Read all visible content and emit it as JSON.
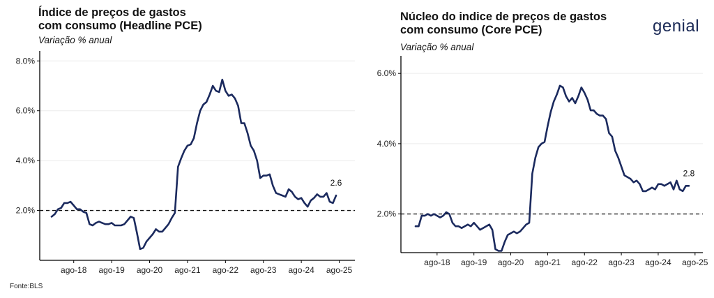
{
  "brand": {
    "logo_text": "genial",
    "accent_color": "#2bb3a9"
  },
  "source": "Fonte:BLS",
  "line_color": "#1b2a5e",
  "chart_data": [
    {
      "type": "line",
      "title_line1": "Índice de preços de gastos",
      "title_line2": "com consumo (Headline PCE)",
      "subtitle": "Variação % anual",
      "xticks": [
        "ago-18",
        "ago-19",
        "ago-20",
        "ago-21",
        "ago-22",
        "ago-23",
        "ago-24",
        "ago-25"
      ],
      "yticks": [
        "2.0%",
        "4.0%",
        "6.0%",
        "8.0%"
      ],
      "ytick_values": [
        2,
        4,
        6,
        8
      ],
      "ylim": [
        0,
        8.4
      ],
      "x_start": "2018-01",
      "reference_line": 2,
      "end_label": "2.6",
      "values": [
        1.75,
        1.85,
        2.05,
        2.1,
        2.3,
        2.3,
        2.35,
        2.2,
        2.05,
        2.05,
        1.95,
        1.9,
        1.45,
        1.4,
        1.5,
        1.55,
        1.5,
        1.45,
        1.45,
        1.5,
        1.4,
        1.4,
        1.4,
        1.45,
        1.6,
        1.75,
        1.7,
        1.1,
        0.45,
        0.5,
        0.75,
        0.9,
        1.05,
        1.25,
        1.15,
        1.15,
        1.3,
        1.45,
        1.7,
        1.9,
        3.75,
        4.1,
        4.4,
        4.6,
        4.65,
        4.9,
        5.5,
        6.0,
        6.25,
        6.35,
        6.65,
        7.0,
        6.8,
        6.75,
        7.25,
        6.8,
        6.6,
        6.65,
        6.5,
        6.2,
        5.5,
        5.5,
        5.1,
        4.6,
        4.4,
        4.0,
        3.3,
        3.4,
        3.4,
        3.45,
        3.0,
        2.7,
        2.65,
        2.6,
        2.55,
        2.85,
        2.75,
        2.55,
        2.45,
        2.5,
        2.3,
        2.15,
        2.4,
        2.5,
        2.65,
        2.55,
        2.55,
        2.7,
        2.35,
        2.3,
        2.6
      ]
    },
    {
      "type": "line",
      "title_line1": "Núcleo do indice de preços de gastos",
      "title_line2": "com consumo (Core PCE)",
      "subtitle": "Variação % anual",
      "xticks": [
        "ago-18",
        "ago-19",
        "ago-20",
        "ago-21",
        "ago-22",
        "ago-23",
        "ago-24",
        "ago-25"
      ],
      "yticks": [
        "2.0%",
        "4.0%",
        "6.0%"
      ],
      "ytick_values": [
        2,
        4,
        6
      ],
      "ylim": [
        0.9,
        6.5
      ],
      "x_start": "2018-01",
      "reference_line": 2,
      "end_label": "2.8",
      "values": [
        1.65,
        1.65,
        1.95,
        1.95,
        2.0,
        1.95,
        2.0,
        1.95,
        1.9,
        1.95,
        2.05,
        2.0,
        1.75,
        1.65,
        1.65,
        1.6,
        1.65,
        1.7,
        1.65,
        1.75,
        1.65,
        1.55,
        1.6,
        1.65,
        1.7,
        1.55,
        1.0,
        0.95,
        0.95,
        1.2,
        1.4,
        1.45,
        1.5,
        1.45,
        1.5,
        1.6,
        1.7,
        1.75,
        3.15,
        3.6,
        3.9,
        4.0,
        4.05,
        4.5,
        4.9,
        5.2,
        5.4,
        5.65,
        5.6,
        5.35,
        5.2,
        5.3,
        5.15,
        5.35,
        5.6,
        5.45,
        5.25,
        4.95,
        4.95,
        4.85,
        4.8,
        4.8,
        4.7,
        4.3,
        4.2,
        3.8,
        3.6,
        3.35,
        3.1,
        3.05,
        3.0,
        2.9,
        2.95,
        2.85,
        2.65,
        2.65,
        2.7,
        2.75,
        2.7,
        2.85,
        2.85,
        2.8,
        2.85,
        2.9,
        2.7,
        2.95,
        2.7,
        2.65,
        2.8,
        2.8
      ]
    }
  ]
}
